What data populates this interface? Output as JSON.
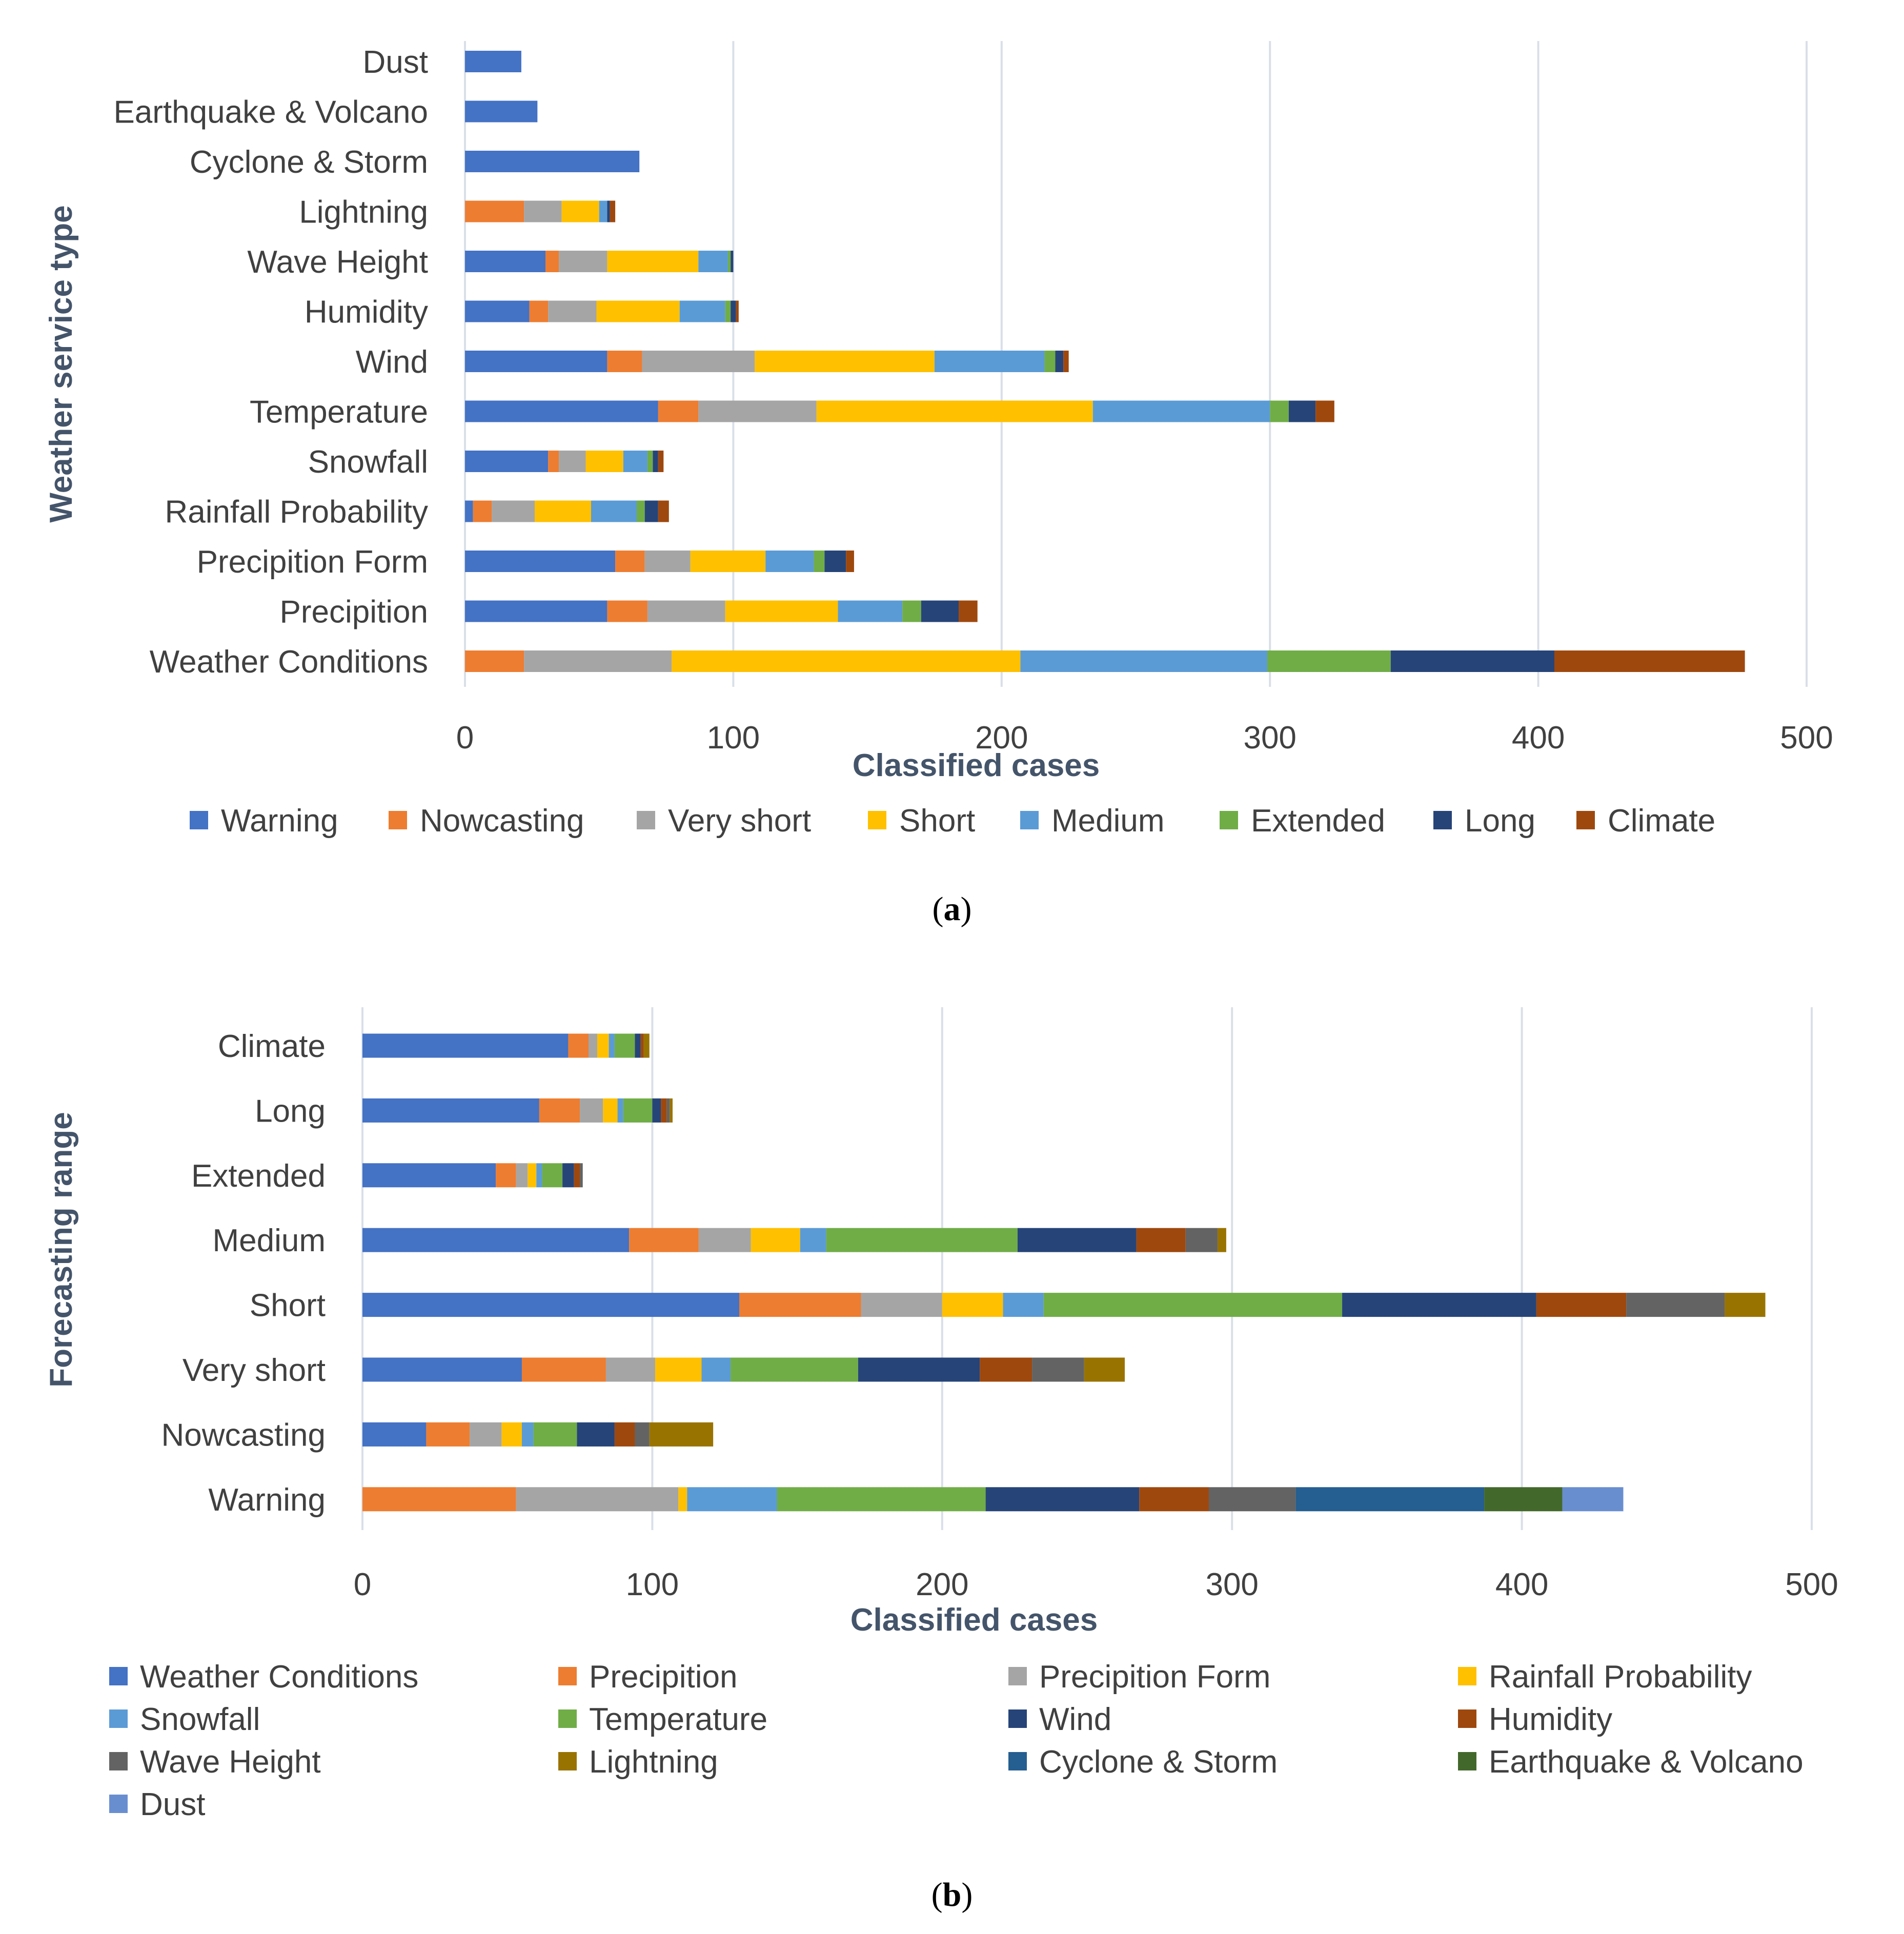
{
  "chart_data": [
    {
      "type": "bar",
      "orientation": "horizontal",
      "stacked": true,
      "panel_label": "a",
      "xlabel": "Classified cases",
      "ylabel": "Weather service type",
      "xlim": [
        0,
        500
      ],
      "xticks": [
        0,
        100,
        200,
        300,
        400,
        500
      ],
      "categories": [
        "Dust",
        "Earthquake & Volcano",
        "Cyclone & Storm ",
        "Lightning",
        "Wave Height ",
        "Humidity",
        "Wind",
        "Temperature",
        "Snowfall",
        "Rainfall Probability ",
        "Precipition Form",
        "Precipition",
        "Weather Conditions"
      ],
      "series": [
        {
          "name": "Warning",
          "color": "#4472c4",
          "values": [
            21,
            27,
            65,
            0,
            30,
            24,
            53,
            72,
            31,
            3,
            56,
            53,
            0
          ]
        },
        {
          "name": "Nowcasting",
          "color": "#ed7d31",
          "values": [
            0,
            0,
            0,
            22,
            5,
            7,
            13,
            15,
            4,
            7,
            11,
            15,
            22
          ]
        },
        {
          "name": "Very short",
          "color": "#a5a5a5",
          "values": [
            0,
            0,
            0,
            14,
            18,
            18,
            42,
            44,
            10,
            16,
            17,
            29,
            55
          ]
        },
        {
          "name": "Short",
          "color": "#ffc000",
          "values": [
            0,
            0,
            0,
            14,
            34,
            31,
            67,
            103,
            14,
            21,
            28,
            42,
            130
          ]
        },
        {
          "name": "Medium",
          "color": "#5b9bd5",
          "values": [
            0,
            0,
            0,
            3,
            11,
            17,
            41,
            66,
            9,
            17,
            18,
            24,
            92
          ]
        },
        {
          "name": "Extended",
          "color": "#70ad47",
          "values": [
            0,
            0,
            0,
            0,
            1,
            2,
            4,
            7,
            2,
            3,
            4,
            7,
            46
          ]
        },
        {
          "name": "Long",
          "color": "#264478",
          "values": [
            0,
            0,
            0,
            1,
            1,
            2,
            3,
            10,
            2,
            5,
            8,
            14,
            61
          ]
        },
        {
          "name": "Climate",
          "color": "#9e480e",
          "values": [
            0,
            0,
            0,
            2,
            0,
            1,
            2,
            7,
            2,
            4,
            3,
            7,
            71
          ]
        }
      ]
    },
    {
      "type": "bar",
      "orientation": "horizontal",
      "stacked": true,
      "panel_label": "b",
      "xlabel": "Classified cases",
      "ylabel": "Forecasting range",
      "xlim": [
        0,
        500
      ],
      "xticks": [
        0,
        100,
        200,
        300,
        400,
        500
      ],
      "categories": [
        "Climate",
        "Long",
        "Extended",
        "Medium",
        "Short",
        "Very short",
        "Nowcasting",
        "Warning"
      ],
      "series": [
        {
          "name": "Weather Conditions",
          "color": "#4472c4",
          "values": [
            71,
            61,
            46,
            92,
            130,
            55,
            22,
            0
          ]
        },
        {
          "name": "Precipition",
          "color": "#ed7d31",
          "values": [
            7,
            14,
            7,
            24,
            42,
            29,
            15,
            53
          ]
        },
        {
          "name": "Precipition Form",
          "color": "#a5a5a5",
          "values": [
            3,
            8,
            4,
            18,
            28,
            17,
            11,
            56
          ]
        },
        {
          "name": "Rainfall Probability",
          "color": "#ffc000",
          "values": [
            4,
            5,
            3,
            17,
            21,
            16,
            7,
            3
          ]
        },
        {
          "name": "Snowfall",
          "color": "#5b9bd5",
          "values": [
            2,
            2,
            2,
            9,
            14,
            10,
            4,
            31
          ]
        },
        {
          "name": "Temperature",
          "color": "#70ad47",
          "values": [
            7,
            10,
            7,
            66,
            103,
            44,
            15,
            72
          ]
        },
        {
          "name": "Wind",
          "color": "#264478",
          "values": [
            2,
            3,
            4,
            41,
            67,
            42,
            13,
            53
          ]
        },
        {
          "name": "Humidity",
          "color": "#9e480e",
          "values": [
            1,
            2,
            2,
            17,
            31,
            18,
            7,
            24
          ]
        },
        {
          "name": "Wave Height",
          "color": "#636363",
          "values": [
            0,
            1,
            1,
            11,
            34,
            18,
            5,
            30
          ]
        },
        {
          "name": "Lightning",
          "color": "#997300",
          "values": [
            2,
            1,
            0,
            3,
            14,
            14,
            22,
            0
          ]
        },
        {
          "name": "Cyclone & Storm",
          "color": "#255e91",
          "values": [
            0,
            0,
            0,
            0,
            0,
            0,
            0,
            65
          ]
        },
        {
          "name": "Earthquake & Volcano",
          "color": "#43682b",
          "values": [
            0,
            0,
            0,
            0,
            0,
            0,
            0,
            27
          ]
        },
        {
          "name": "Dust",
          "color": "#698ed0",
          "values": [
            0,
            0,
            0,
            0,
            0,
            0,
            0,
            21
          ]
        }
      ]
    }
  ]
}
